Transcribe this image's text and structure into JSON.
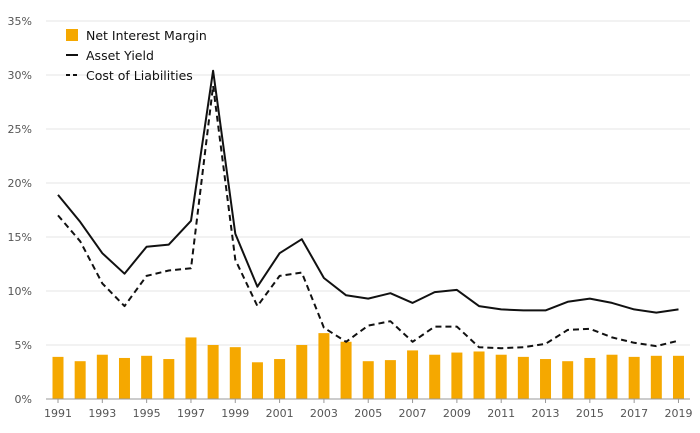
{
  "chart_data": {
    "type": "bar+line",
    "title": "",
    "xlabel": "",
    "ylabel": "",
    "ylim": [
      0,
      35
    ],
    "y_ticks": [
      "0%",
      "5%",
      "10%",
      "15%",
      "20%",
      "25%",
      "30%",
      "35%"
    ],
    "y_tick_values": [
      0,
      5,
      10,
      15,
      20,
      25,
      30,
      35
    ],
    "x_tick_labels": [
      "1991",
      "1993",
      "1995",
      "1997",
      "1999",
      "2001",
      "2003",
      "2005",
      "2007",
      "2009",
      "2011",
      "2013",
      "2015",
      "2017",
      "2019"
    ],
    "categories": [
      "1991",
      "1992",
      "1993",
      "1994",
      "1995",
      "1996",
      "1997",
      "1998",
      "1999",
      "2000",
      "2001",
      "2002",
      "2003",
      "2004",
      "2005",
      "2006",
      "2007",
      "2008",
      "2009",
      "2010",
      "2011",
      "2012",
      "2013",
      "2014",
      "2015",
      "2016",
      "2017",
      "2018",
      "2019"
    ],
    "grid": true,
    "legend_position": "top-left",
    "series": [
      {
        "name": "Net Interest Margin",
        "kind": "bar",
        "color": "#F5A800",
        "values": [
          3.9,
          3.5,
          4.1,
          3.8,
          4.0,
          3.7,
          5.7,
          5.0,
          4.8,
          3.4,
          3.7,
          5.0,
          6.1,
          5.3,
          3.5,
          3.6,
          4.5,
          4.1,
          4.3,
          4.4,
          4.1,
          3.9,
          3.7,
          3.5,
          3.8,
          4.1,
          3.9,
          4.0,
          4.0
        ]
      },
      {
        "name": "Asset Yield",
        "kind": "line",
        "style": "solid",
        "color": "#111111",
        "values": [
          18.9,
          16.4,
          13.5,
          11.6,
          14.1,
          14.3,
          16.5,
          30.4,
          15.3,
          10.4,
          13.5,
          14.8,
          11.2,
          9.6,
          9.3,
          9.8,
          8.9,
          9.9,
          10.1,
          8.6,
          8.3,
          8.2,
          8.2,
          9.0,
          9.3,
          8.9,
          8.3,
          8.0,
          8.3
        ]
      },
      {
        "name": "Cost of Liabilities",
        "kind": "line",
        "style": "dashed",
        "color": "#111111",
        "values": [
          17.0,
          14.6,
          10.7,
          8.6,
          11.4,
          11.9,
          12.1,
          29.0,
          12.9,
          8.6,
          11.4,
          11.7,
          6.6,
          5.3,
          6.8,
          7.2,
          5.3,
          6.7,
          6.7,
          4.8,
          4.7,
          4.8,
          5.1,
          6.4,
          6.5,
          5.7,
          5.2,
          4.9,
          5.4
        ]
      }
    ]
  }
}
